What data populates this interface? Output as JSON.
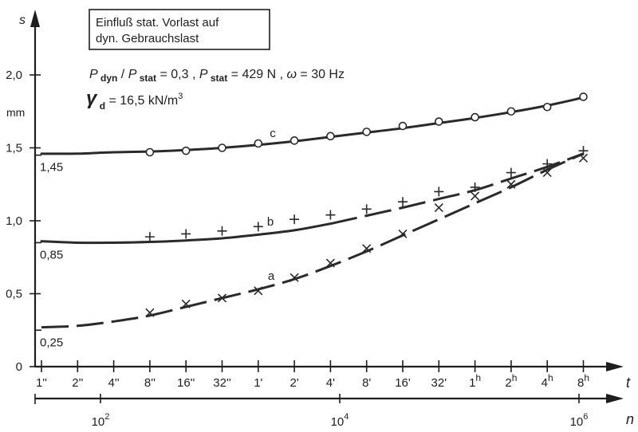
{
  "chart_data": {
    "type": "line",
    "ylabel": "s",
    "yunit": "mm",
    "ylim": [
      0,
      2.3
    ],
    "yticks": [
      {
        "value": 0,
        "label": "0"
      },
      {
        "value": 0.5,
        "label": "0,5"
      },
      {
        "value": 1.0,
        "label": "1,0"
      },
      {
        "value": 1.5,
        "label": "1,5"
      },
      {
        "value": 2.0,
        "label": "2,0"
      }
    ],
    "xlabel_time": "t",
    "xlabel_cycles": "n",
    "time_ticks": [
      "1''",
      "2''",
      "4''",
      "8''",
      "16''",
      "32''",
      "1'",
      "2'",
      "4'",
      "8'",
      "16'",
      "32'",
      "1h",
      "2h",
      "4h",
      "8h"
    ],
    "cycle_ticks": [
      {
        "base": "10",
        "exp": "2",
        "log10": 2
      },
      {
        "base": "10",
        "exp": "4",
        "log10": 4
      },
      {
        "base": "10",
        "exp": "6",
        "log10": 6
      }
    ],
    "note_box": [
      "Einfluß stat. Vorlast auf",
      "dyn. Gebrauchslast"
    ],
    "params_line1": "P dyn / P stat = 0,3 , P stat = 429 N , ω = 30 Hz",
    "params_line2": "γ d = 16,5 kN/m3",
    "intercept_labels": [
      {
        "value": 1.45,
        "label": "1,45"
      },
      {
        "value": 0.85,
        "label": "0,85"
      },
      {
        "value": 0.25,
        "label": "0,25"
      }
    ],
    "series": [
      {
        "name": "c",
        "marker": "circle",
        "line": "solid",
        "points": [
          {
            "t": "8''",
            "s": 1.47
          },
          {
            "t": "16''",
            "s": 1.48
          },
          {
            "t": "32''",
            "s": 1.5
          },
          {
            "t": "1'",
            "s": 1.53
          },
          {
            "t": "2'",
            "s": 1.55
          },
          {
            "t": "4'",
            "s": 1.58
          },
          {
            "t": "8'",
            "s": 1.61
          },
          {
            "t": "16'",
            "s": 1.65
          },
          {
            "t": "32'",
            "s": 1.68
          },
          {
            "t": "1h",
            "s": 1.71
          },
          {
            "t": "2h",
            "s": 1.75
          },
          {
            "t": "4h",
            "s": 1.78
          },
          {
            "t": "8h",
            "s": 1.85
          }
        ],
        "curve": [
          1.46,
          1.46,
          1.47,
          1.475,
          1.485,
          1.5,
          1.52,
          1.545,
          1.575,
          1.605,
          1.635,
          1.67,
          1.705,
          1.745,
          1.79,
          1.845
        ]
      },
      {
        "name": "b",
        "marker": "plus",
        "line": "solid then dashed",
        "points": [
          {
            "t": "8''",
            "s": 0.89
          },
          {
            "t": "16''",
            "s": 0.91
          },
          {
            "t": "32''",
            "s": 0.93
          },
          {
            "t": "1'",
            "s": 0.96
          },
          {
            "t": "2'",
            "s": 1.01
          },
          {
            "t": "4'",
            "s": 1.04
          },
          {
            "t": "8'",
            "s": 1.08
          },
          {
            "t": "16'",
            "s": 1.13
          },
          {
            "t": "32'",
            "s": 1.2
          },
          {
            "t": "1h",
            "s": 1.23
          },
          {
            "t": "2h",
            "s": 1.33
          },
          {
            "t": "4h",
            "s": 1.39
          },
          {
            "t": "8h",
            "s": 1.48
          }
        ],
        "curve": [
          0.86,
          0.85,
          0.85,
          0.855,
          0.865,
          0.88,
          0.905,
          0.935,
          0.98,
          1.035,
          1.09,
          1.15,
          1.21,
          1.29,
          1.37,
          1.46
        ]
      },
      {
        "name": "a",
        "marker": "cross",
        "line": "dashed",
        "points": [
          {
            "t": "8''",
            "s": 0.37
          },
          {
            "t": "16''",
            "s": 0.43
          },
          {
            "t": "32''",
            "s": 0.47
          },
          {
            "t": "1'",
            "s": 0.52
          },
          {
            "t": "2'",
            "s": 0.61
          },
          {
            "t": "4'",
            "s": 0.71
          },
          {
            "t": "8'",
            "s": 0.81
          },
          {
            "t": "16'",
            "s": 0.91
          },
          {
            "t": "32'",
            "s": 1.09
          },
          {
            "t": "1h",
            "s": 1.17
          },
          {
            "t": "2h",
            "s": 1.25
          },
          {
            "t": "4h",
            "s": 1.33
          },
          {
            "t": "8h",
            "s": 1.43
          }
        ],
        "curve": [
          0.27,
          0.28,
          0.31,
          0.35,
          0.41,
          0.47,
          0.53,
          0.6,
          0.69,
          0.79,
          0.9,
          1.01,
          1.12,
          1.23,
          1.35,
          1.46
        ]
      }
    ]
  }
}
